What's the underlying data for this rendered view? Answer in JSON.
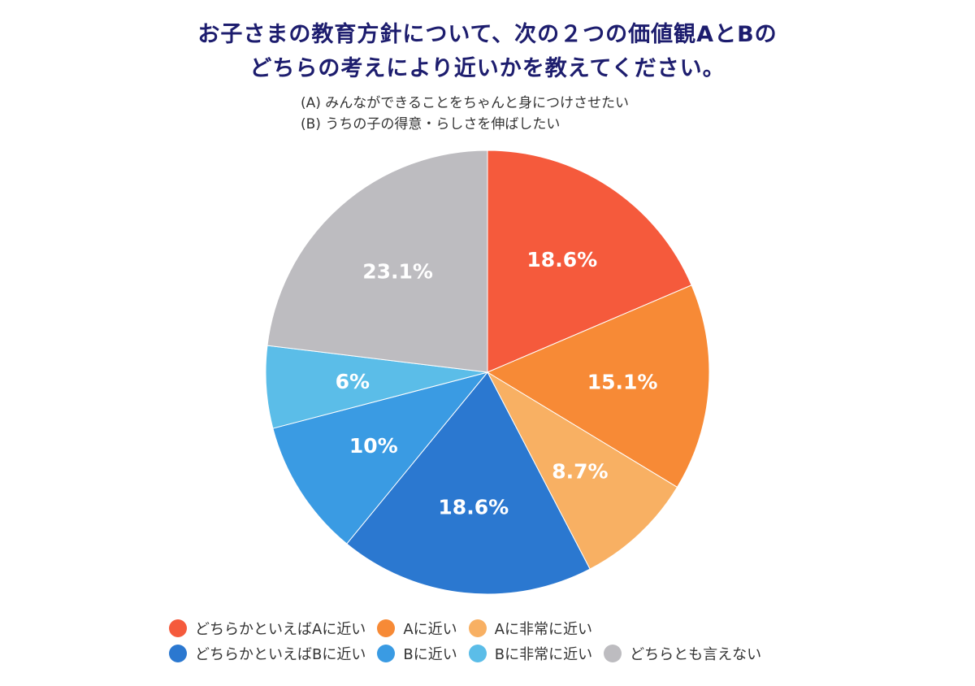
{
  "chart_data": {
    "type": "pie",
    "title_lines": [
      "お子さまの教育方針について、次の２つの価値観AとBの",
      "どちらの考えにより近いかを教えてください。"
    ],
    "subtitle_lines": [
      "(A) みんなができることをちゃんと身につけさせたい",
      "(B) うちの子の得意・らしさを伸ばしたい"
    ],
    "start": "12 o'clock, clockwise",
    "slices": [
      {
        "name": "どちらかといえばAに近い",
        "value": 18.6,
        "label": "18.6%",
        "color": "#F55A3C"
      },
      {
        "name": "Aに近い",
        "value": 15.1,
        "label": "15.1%",
        "color": "#F78A36"
      },
      {
        "name": "Aに非常に近い",
        "value": 8.7,
        "label": "8.7%",
        "color": "#F8B063"
      },
      {
        "name": "どちらかといえばBに近い",
        "value": 18.6,
        "label": "18.6%",
        "color": "#2B78D0"
      },
      {
        "name": "Bに近い",
        "value": 10,
        "label": "10%",
        "color": "#3A9BE3"
      },
      {
        "name": "Bに非常に近い",
        "value": 6,
        "label": "6%",
        "color": "#5BBDE8"
      },
      {
        "name": "どちらとも言えない",
        "value": 23.1,
        "label": "23.1%",
        "color": "#BDBCC0"
      }
    ],
    "legend": {
      "placement": "bottom",
      "rows": [
        [
          0,
          1,
          2
        ],
        [
          3,
          4,
          5,
          6
        ]
      ]
    }
  }
}
